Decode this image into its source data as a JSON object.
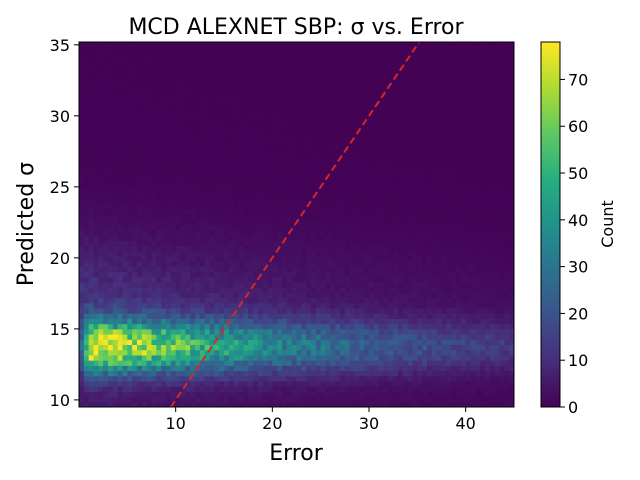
{
  "chart_data": {
    "type": "heatmap",
    "title": "MCD ALEXNET SBP: σ vs. Error",
    "xlabel": "Error",
    "ylabel": "Predicted σ",
    "colorbar_label": "Count",
    "colormap": "viridis",
    "xlim": [
      0,
      45
    ],
    "ylim": [
      9.5,
      35.2
    ],
    "x_ticks": [
      10,
      20,
      30,
      40
    ],
    "y_ticks": [
      10,
      15,
      20,
      25,
      30,
      35
    ],
    "color_range": [
      0,
      78
    ],
    "colorbar_ticks": [
      0,
      10,
      20,
      30,
      40,
      50,
      60,
      70
    ],
    "peak": {
      "x": 3,
      "y": 13.8,
      "count": 78
    },
    "reference_line": {
      "style": "dashed",
      "color": "#d62728",
      "points": [
        [
          9.5,
          9.5
        ],
        [
          35.2,
          35.2
        ]
      ]
    }
  }
}
